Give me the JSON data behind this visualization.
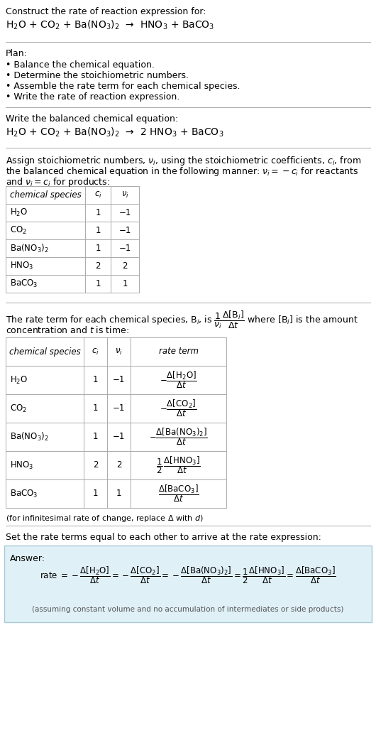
{
  "bg_color": "#ffffff",
  "text_color": "#000000",
  "section1_title": "Construct the rate of reaction expression for:",
  "section1_eq": "H$_2$O + CO$_2$ + Ba(NO$_3$)$_2$  →  HNO$_3$ + BaCO$_3$",
  "plan_title": "Plan:",
  "plan_items": [
    "• Balance the chemical equation.",
    "• Determine the stoichiometric numbers.",
    "• Assemble the rate term for each chemical species.",
    "• Write the rate of reaction expression."
  ],
  "balanced_title": "Write the balanced chemical equation:",
  "balanced_eq": "H$_2$O + CO$_2$ + Ba(NO$_3$)$_2$  →  2 HNO$_3$ + BaCO$_3$",
  "stoich_intro_line1": "Assign stoichiometric numbers, $\\nu_i$, using the stoichiometric coefficients, $c_i$, from",
  "stoich_intro_line2": "the balanced chemical equation in the following manner: $\\nu_i = -c_i$ for reactants",
  "stoich_intro_line3": "and $\\nu_i = c_i$ for products:",
  "table1_headers": [
    "chemical species",
    "$c_i$",
    "$\\nu_i$"
  ],
  "table1_rows": [
    [
      "H$_2$O",
      "1",
      "−1"
    ],
    [
      "CO$_2$",
      "1",
      "−1"
    ],
    [
      "Ba(NO$_3$)$_2$",
      "1",
      "−1"
    ],
    [
      "HNO$_3$",
      "2",
      "2"
    ],
    [
      "BaCO$_3$",
      "1",
      "1"
    ]
  ],
  "table2_headers": [
    "chemical species",
    "$c_i$",
    "$\\nu_i$",
    "rate term"
  ],
  "table2_rows": [
    [
      "H$_2$O",
      "1",
      "−1"
    ],
    [
      "CO$_2$",
      "1",
      "−1"
    ],
    [
      "Ba(NO$_3$)$_2$",
      "1",
      "−1"
    ],
    [
      "HNO$_3$",
      "2",
      "2"
    ],
    [
      "BaCO$_3$",
      "1",
      "1"
    ]
  ],
  "infinitesimal_note": "(for infinitesimal rate of change, replace Δ with $d$)",
  "set_equal_text": "Set the rate terms equal to each other to arrive at the rate expression:",
  "answer_label": "Answer:",
  "answer_box_color": "#dff0f7",
  "answer_box_border": "#aac8d8",
  "assuming_note": "(assuming constant volume and no accumulation of intermediates or side products)"
}
